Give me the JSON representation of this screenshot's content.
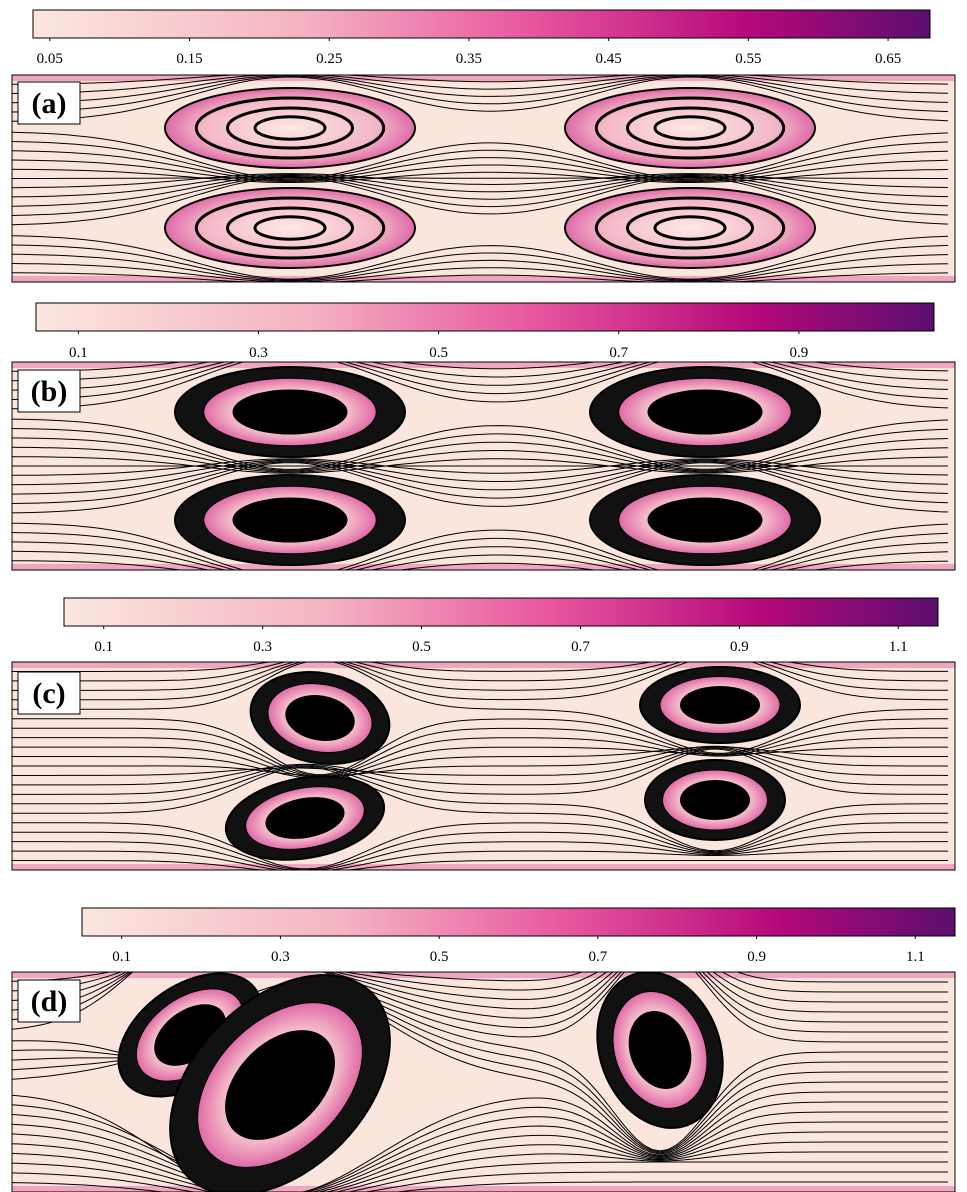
{
  "chart_data": [
    {
      "type": "streamline",
      "label": "(a)",
      "clim": [
        0.038,
        0.68
      ],
      "cticks": [
        0.05,
        0.15,
        0.25,
        0.35,
        0.45,
        0.55,
        0.65
      ]
    },
    {
      "type": "streamline",
      "label": "(b)",
      "clim": [
        0.053,
        1.05
      ],
      "cticks": [
        0.1,
        0.3,
        0.5,
        0.7,
        0.9
      ]
    },
    {
      "type": "streamline",
      "label": "(c)",
      "clim": [
        0.05,
        1.15
      ],
      "cticks": [
        0.1,
        0.3,
        0.5,
        0.7,
        0.9,
        1.1
      ]
    },
    {
      "type": "streamline",
      "label": "(d)",
      "clim": [
        0.05,
        1.15
      ],
      "cticks": [
        0.1,
        0.3,
        0.5,
        0.7,
        0.9,
        1.1
      ]
    }
  ]
}
